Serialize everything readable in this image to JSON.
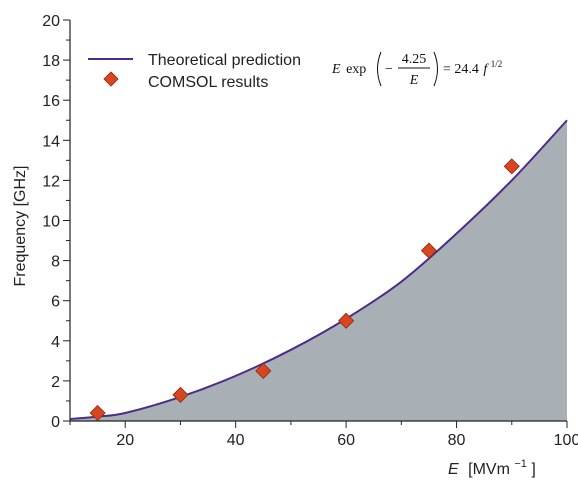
{
  "chart_data": {
    "type": "area",
    "xlabel_var": "E",
    "xlabel_unit": "[MVm",
    "xlabel_exp": "−1",
    "xlabel_close": "]",
    "ylabel": "Frequency [GHz]",
    "xlim": [
      10,
      100
    ],
    "ylim": [
      0,
      20
    ],
    "x_ticks": [
      20,
      40,
      60,
      80,
      100
    ],
    "y_ticks": [
      0,
      2,
      4,
      6,
      8,
      10,
      12,
      14,
      16,
      18,
      20
    ],
    "legend_position": "top-left",
    "series": [
      {
        "name": "Theoretical prediction",
        "style": "line-with-filled-area",
        "color": "#4b2c8a",
        "fill": "#a9b0b5",
        "x": [
          10,
          15,
          20,
          30,
          40,
          50,
          60,
          70,
          80,
          90,
          100
        ],
        "y": [
          0.1,
          0.22,
          0.4,
          1.2,
          2.25,
          3.55,
          5.1,
          6.95,
          9.35,
          12.0,
          15.0
        ]
      },
      {
        "name": "COMSOL results",
        "style": "marker-diamond",
        "color": "#d9451e",
        "x": [
          15,
          30,
          45,
          60,
          75,
          90
        ],
        "y": [
          0.4,
          1.3,
          2.5,
          5.0,
          8.5,
          12.7
        ]
      }
    ],
    "equation": {
      "lhs_var": "E",
      "lhs_func": "exp",
      "minus": "−",
      "num": "4.25",
      "den": "E",
      "rhs": "= 24.4",
      "rhs_var": "f",
      "rhs_exp": "1/2"
    }
  }
}
